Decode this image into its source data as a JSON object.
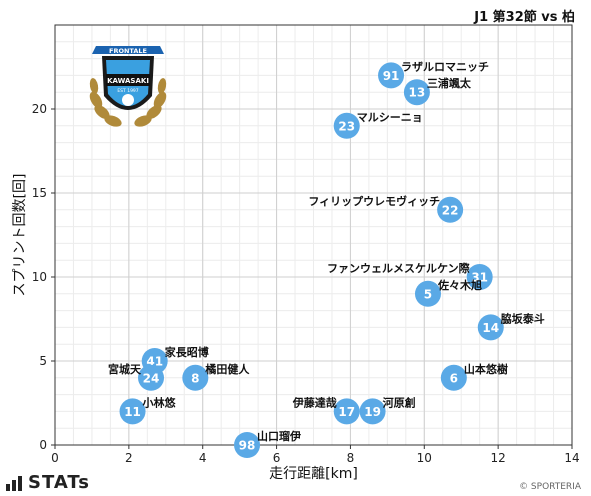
{
  "header": {
    "title": "J1 第32節 vs 柏"
  },
  "footer": {
    "brand": "STATs",
    "credit": "© SPORTERIA"
  },
  "crest": {
    "ribbon_text": "FRONTALE",
    "club_text": "KAWASAKI",
    "est_text": "EST 1997"
  },
  "colors": {
    "marker": "#5aa9e6",
    "marker_text": "#ffffff",
    "grid": "#cfcfcf",
    "label": "#111111"
  },
  "chart_data": {
    "type": "scatter",
    "xlabel": "走行距離[km]",
    "ylabel": "スプリント回数[回]",
    "xlim": [
      0,
      14
    ],
    "ylim": [
      0,
      25
    ],
    "xticks": [
      0,
      2,
      4,
      6,
      8,
      10,
      12,
      14
    ],
    "yticks": [
      0,
      5,
      10,
      15,
      20
    ],
    "grid": true,
    "points": [
      {
        "number": "91",
        "name": "ラザルロマニッチ",
        "x": 9.1,
        "y": 22,
        "label_side": "right"
      },
      {
        "number": "13",
        "name": "三浦颯太",
        "x": 9.8,
        "y": 21,
        "label_side": "right"
      },
      {
        "number": "23",
        "name": "マルシーニョ",
        "x": 7.9,
        "y": 19,
        "label_side": "right"
      },
      {
        "number": "22",
        "name": "フィリップウレモヴィッチ",
        "x": 10.7,
        "y": 14,
        "label_side": "left"
      },
      {
        "number": "31",
        "name": "ファンウェルメスケルケン際",
        "x": 11.5,
        "y": 10,
        "label_side": "left"
      },
      {
        "number": "5",
        "name": "佐々木旭",
        "x": 10.1,
        "y": 9,
        "label_side": "right"
      },
      {
        "number": "14",
        "name": "脇坂泰斗",
        "x": 11.8,
        "y": 7,
        "label_side": "right"
      },
      {
        "number": "41",
        "name": "家長昭博",
        "x": 2.7,
        "y": 5,
        "label_side": "right"
      },
      {
        "number": "24",
        "name": "宮城天",
        "x": 2.6,
        "y": 4,
        "label_side": "left"
      },
      {
        "number": "8",
        "name": "橘田健人",
        "x": 3.8,
        "y": 4,
        "label_side": "right"
      },
      {
        "number": "6",
        "name": "山本悠樹",
        "x": 10.8,
        "y": 4,
        "label_side": "right"
      },
      {
        "number": "11",
        "name": "小林悠",
        "x": 2.1,
        "y": 2,
        "label_side": "right"
      },
      {
        "number": "17",
        "name": "伊藤達哉",
        "x": 7.9,
        "y": 2,
        "label_side": "left"
      },
      {
        "number": "19",
        "name": "河原創",
        "x": 8.6,
        "y": 2,
        "label_side": "right"
      },
      {
        "number": "98",
        "name": "山口瑠伊",
        "x": 5.2,
        "y": 0,
        "label_side": "right"
      }
    ]
  }
}
